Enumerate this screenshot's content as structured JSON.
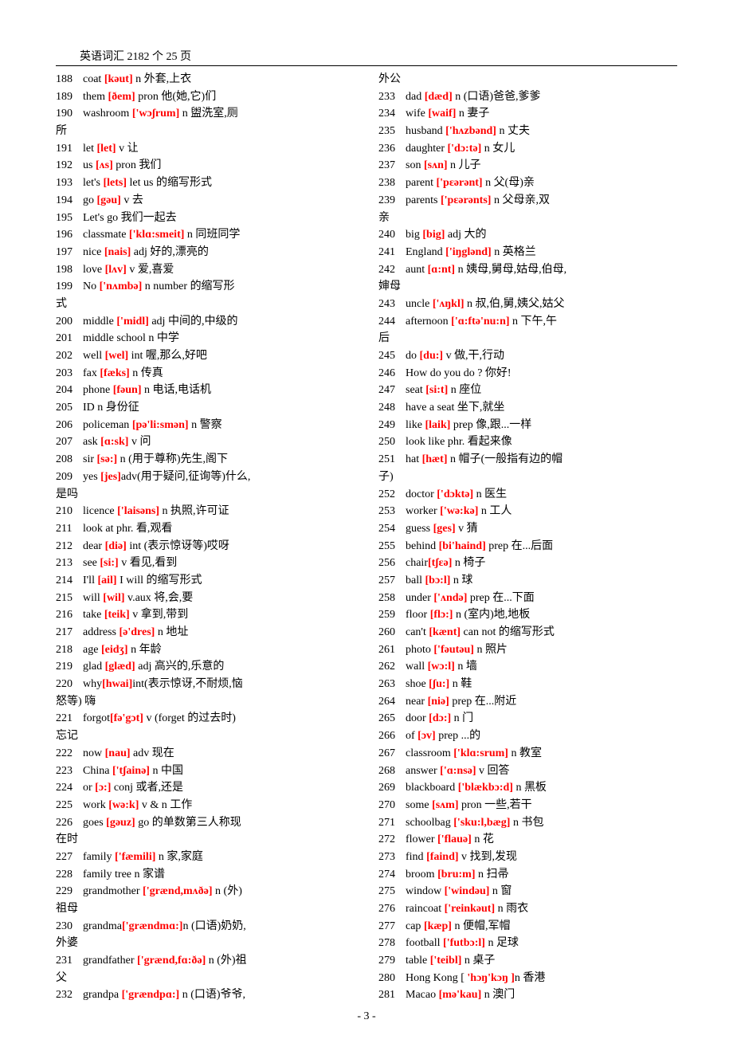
{
  "header": "英语词汇 2182 个 25 页",
  "page_num": "- 3 -",
  "style": {
    "pron_color": "#ff0000",
    "text_color": "#000000",
    "background": "#ffffff",
    "font_size": 14,
    "num_width": 34
  },
  "left": [
    {
      "n": "188",
      "w": "coat ",
      "p": "[kəut]",
      "d": " n 外套,上衣"
    },
    {
      "n": "189",
      "w": "them ",
      "p": "[ðem]",
      "d": " pron 他(她,它)们"
    },
    {
      "n": "190",
      "w": "washroom ",
      "p": "['wɔʃrum]",
      "d": " n 盥洗室,厕"
    },
    {
      "n": "",
      "w": "所",
      "p": "",
      "d": ""
    },
    {
      "n": "191",
      "w": "let ",
      "p": "[let]",
      "d": " v  让"
    },
    {
      "n": "192",
      "w": "us ",
      "p": "[ʌs]",
      "d": " pron 我们"
    },
    {
      "n": "193",
      "w": "let's ",
      "p": "[lets]",
      "d": " let us 的缩写形式"
    },
    {
      "n": "194",
      "w": "go ",
      "p": "[gəu]",
      "d": " v  去"
    },
    {
      "n": "195",
      "w": "Let's go     我们一起去",
      "p": "",
      "d": ""
    },
    {
      "n": "196",
      "w": "classmate ",
      "p": "['klɑ:smeit]",
      "d": " n 同班同学"
    },
    {
      "n": "197",
      "w": "nice ",
      "p": "[nais]",
      "d": " adj 好的,漂亮的"
    },
    {
      "n": "198",
      "w": "love ",
      "p": "[lʌv]",
      "d": " v  爱,喜爱"
    },
    {
      "n": "199",
      "w": "No ",
      "p": "['nʌmbə]",
      "d": " n number 的缩写形"
    },
    {
      "n": "",
      "w": "式",
      "p": "",
      "d": ""
    },
    {
      "n": "200",
      "w": "middle ",
      "p": "['midl]",
      "d": " adj 中间的,中级的"
    },
    {
      "n": "201",
      "w": "middle school    n 中学",
      "p": "",
      "d": ""
    },
    {
      "n": "202",
      "w": "well ",
      "p": "[wel]",
      "d": " int 喔,那么,好吧"
    },
    {
      "n": "203",
      "w": "fax ",
      "p": "[fæks]",
      "d": " n 传真"
    },
    {
      "n": "204",
      "w": "phone ",
      "p": "[fəun]",
      "d": " n 电话,电话机"
    },
    {
      "n": "205",
      "w": "ID   n 身份征",
      "p": "",
      "d": ""
    },
    {
      "n": "206",
      "w": "policeman ",
      "p": "[pə'li:smən]",
      "d": " n 警察"
    },
    {
      "n": "207",
      "w": "ask ",
      "p": "[ɑ:sk]",
      "d": " v  问"
    },
    {
      "n": "208",
      "w": "sir ",
      "p": "[sə:]",
      "d": " n (用于尊称)先生,阁下"
    },
    {
      "n": "209",
      "w": "yes ",
      "p": "[jes]",
      "d": "adv(用于疑问,征询等)什么,"
    },
    {
      "n": "",
      "w": "是吗",
      "p": "",
      "d": ""
    },
    {
      "n": "210",
      "w": "licence ",
      "p": "['laisəns]",
      "d": " n 执照,许可证"
    },
    {
      "n": "211",
      "w": "look at    phr. 看,观看",
      "p": "",
      "d": ""
    },
    {
      "n": "212",
      "w": "dear ",
      "p": "[diə]",
      "d": " int (表示惊讶等)哎呀"
    },
    {
      "n": "213",
      "w": "see ",
      "p": "[si:]",
      "d": " v  看见,看到"
    },
    {
      "n": "214",
      "w": "I'll ",
      "p": "[ail]",
      "d": " I will 的缩写形式"
    },
    {
      "n": "215",
      "w": "will ",
      "p": "[wil]",
      "d": " v.aux 将,会,要"
    },
    {
      "n": "216",
      "w": "take ",
      "p": "[teik]",
      "d": " v  拿到,带到"
    },
    {
      "n": "217",
      "w": "address ",
      "p": "[ə'dres]",
      "d": " n 地址"
    },
    {
      "n": "218",
      "w": "age ",
      "p": "[eidʒ]",
      "d": " n 年龄"
    },
    {
      "n": "219",
      "w": "glad ",
      "p": "[glæd]",
      "d": " adj 高兴的,乐意的"
    },
    {
      "n": "220",
      "w": "why",
      "p": "[hwai]",
      "d": "int(表示惊讶,不耐烦,恼"
    },
    {
      "n": "",
      "w": "怒等) 嗨",
      "p": "",
      "d": ""
    },
    {
      "n": "221",
      "w": "forgot",
      "p": "[fə'gɔt]",
      "d": " v  (forget 的过去时) "
    },
    {
      "n": "",
      "w": "忘记",
      "p": "",
      "d": ""
    },
    {
      "n": "222",
      "w": "now ",
      "p": "[nau]",
      "d": " adv 现在"
    },
    {
      "n": "223",
      "w": "China ",
      "p": "['tʃainə]",
      "d": " n 中国"
    },
    {
      "n": "224",
      "w": "or ",
      "p": "[ɔ:]",
      "d": " conj 或者,还是"
    },
    {
      "n": "225",
      "w": "work ",
      "p": "[wə:k]",
      "d": " v & n 工作"
    },
    {
      "n": "226",
      "w": "goes ",
      "p": "[gəuz]",
      "d": " go 的单数第三人称现"
    },
    {
      "n": "",
      "w": "在时",
      "p": "",
      "d": ""
    },
    {
      "n": "227",
      "w": "family ",
      "p": "['fæmili]",
      "d": " n 家,家庭"
    },
    {
      "n": "228",
      "w": "family tree    n 家谱",
      "p": "",
      "d": ""
    },
    {
      "n": "229",
      "w": "grandmother ",
      "p": "['grænd,mʌðə]",
      "d": " n (外)"
    },
    {
      "n": "",
      "w": "祖母",
      "p": "",
      "d": ""
    },
    {
      "n": "230",
      "w": "grandma",
      "p": "['grændmɑ:]",
      "d": "n (口语)奶奶,"
    },
    {
      "n": "",
      "w": "外婆",
      "p": "",
      "d": ""
    },
    {
      "n": "231",
      "w": "grandfather ",
      "p": "['grænd,fɑ:ðə]",
      "d": " n (外)祖"
    },
    {
      "n": "",
      "w": "父",
      "p": "",
      "d": ""
    },
    {
      "n": "232",
      "w": "grandpa ",
      "p": "['grændpɑ:]",
      "d": " n (口语)爷爷,"
    }
  ],
  "right": [
    {
      "n": "",
      "w": "外公",
      "p": "",
      "d": ""
    },
    {
      "n": "233",
      "w": "dad ",
      "p": "[dæd]",
      "d": " n (口语)爸爸,爹爹"
    },
    {
      "n": "234",
      "w": "wife ",
      "p": "[waif]",
      "d": " n 妻子"
    },
    {
      "n": "235",
      "w": "husband ",
      "p": "['hʌzbənd]",
      "d": " n 丈夫"
    },
    {
      "n": "236",
      "w": "daughter ",
      "p": "['dɔ:tə]",
      "d": " n 女儿"
    },
    {
      "n": "237",
      "w": "son ",
      "p": "[sʌn]",
      "d": " n 儿子"
    },
    {
      "n": "238",
      "w": "parent ",
      "p": "['pɛərənt]",
      "d": " n 父(母)亲"
    },
    {
      "n": "239",
      "w": "parents  ",
      "p": "['pɛərənts]",
      "d": "  n 父母亲,双"
    },
    {
      "n": "",
      "w": "亲",
      "p": "",
      "d": ""
    },
    {
      "n": "240",
      "w": "big ",
      "p": "[big]",
      "d": " adj 大的"
    },
    {
      "n": "241",
      "w": "England ",
      "p": "['iŋglənd]",
      "d": " n 英格兰"
    },
    {
      "n": "242",
      "w": "aunt ",
      "p": "[ɑ:nt]",
      "d": " n 姨母,舅母,姑母,伯母,"
    },
    {
      "n": "",
      "w": "婶母",
      "p": "",
      "d": ""
    },
    {
      "n": "243",
      "w": "uncle ",
      "p": "['ʌŋkl]",
      "d": " n 叔,伯,舅,姨父,姑父"
    },
    {
      "n": "244",
      "w": "afternoon ",
      "p": "['ɑ:ftə'nu:n]",
      "d": " n 下午,午"
    },
    {
      "n": "",
      "w": "后",
      "p": "",
      "d": ""
    },
    {
      "n": "245",
      "w": "do ",
      "p": "[du:]",
      "d": " v  做,干,行动"
    },
    {
      "n": "246",
      "w": "How do you do ?    你好!",
      "p": "",
      "d": ""
    },
    {
      "n": "247",
      "w": "seat ",
      "p": "[si:t]",
      "d": " n 座位"
    },
    {
      "n": "248",
      "w": "have a seat    坐下,就坐",
      "p": "",
      "d": ""
    },
    {
      "n": "249",
      "w": "like ",
      "p": "[laik]",
      "d": " prep  像,跟...一样"
    },
    {
      "n": "250",
      "w": "look like   phr. 看起来像",
      "p": "",
      "d": ""
    },
    {
      "n": "251",
      "w": "hat ",
      "p": "[hæt]",
      "d": " n 帽子(一般指有边的帽"
    },
    {
      "n": "",
      "w": "子)",
      "p": "",
      "d": ""
    },
    {
      "n": "252",
      "w": "doctor ",
      "p": "['dɔktə]",
      "d": " n 医生"
    },
    {
      "n": "253",
      "w": "worker ",
      "p": "['wə:kə]",
      "d": " n 工人"
    },
    {
      "n": "254",
      "w": "guess ",
      "p": "[ges]",
      "d": " v  猜"
    },
    {
      "n": "255",
      "w": "behind ",
      "p": "[bi'haind]",
      "d": " prep 在...后面"
    },
    {
      "n": "256",
      "w": "chair",
      "p": "[tʃɛə]",
      "d": " n  椅子"
    },
    {
      "n": "257",
      "w": "ball ",
      "p": "[bɔ:l]",
      "d": " n 球"
    },
    {
      "n": "258",
      "w": "under ",
      "p": "['ʌndə]",
      "d": " prep  在...下面"
    },
    {
      "n": "259",
      "w": "floor ",
      "p": "[flɔ:]",
      "d": " n (室内)地,地板"
    },
    {
      "n": "260",
      "w": "can't ",
      "p": "[kænt]",
      "d": " can not 的缩写形式"
    },
    {
      "n": "261",
      "w": "photo ",
      "p": "['fəutəu]",
      "d": " n 照片"
    },
    {
      "n": "262",
      "w": "wall ",
      "p": "[wɔ:l]",
      "d": " n 墙"
    },
    {
      "n": "263",
      "w": "shoe ",
      "p": "[ʃu:]",
      "d": " n 鞋"
    },
    {
      "n": "264",
      "w": "near ",
      "p": "[niə]",
      "d": " prep 在...附近"
    },
    {
      "n": "265",
      "w": "door ",
      "p": "[dɔ:]",
      "d": " n 门"
    },
    {
      "n": "266",
      "w": "of ",
      "p": "[ɔv]",
      "d": " prep  ...的"
    },
    {
      "n": "267",
      "w": "classroom ",
      "p": "['klɑ:srum]",
      "d": " n 教室"
    },
    {
      "n": "268",
      "w": "answer ",
      "p": "['ɑ:nsə]",
      "d": " v  回答"
    },
    {
      "n": "269",
      "w": "blackboard ",
      "p": "['blækbɔ:d]",
      "d": " n 黑板"
    },
    {
      "n": "270",
      "w": "some ",
      "p": "[sʌm]",
      "d": " pron 一些,若干"
    },
    {
      "n": "271",
      "w": "schoolbag ",
      "p": "['sku:l,bæg]",
      "d": " n 书包"
    },
    {
      "n": "272",
      "w": "flower ",
      "p": "['flauə]",
      "d": " n 花"
    },
    {
      "n": "273",
      "w": "find ",
      "p": "[faind]",
      "d": " v  找到,发现"
    },
    {
      "n": "274",
      "w": "broom ",
      "p": "[bru:m]",
      "d": " n 扫帚"
    },
    {
      "n": "275",
      "w": "window ",
      "p": "['windəu]",
      "d": " n 窗"
    },
    {
      "n": "276",
      "w": "raincoat ",
      "p": "['reinkəut]",
      "d": " n 雨衣"
    },
    {
      "n": "277",
      "w": "cap ",
      "p": "[kæp]",
      "d": " n 便帽,军帽"
    },
    {
      "n": "278",
      "w": "football ",
      "p": "['futbɔ:l]",
      "d": " n 足球"
    },
    {
      "n": "279",
      "w": "table ",
      "p": "['teibl]",
      "d": " n 桌子"
    },
    {
      "n": "280",
      "w": "Hong Kong [ ",
      "p": "'hɔŋ'kɔŋ ]",
      "d": "n 香港"
    },
    {
      "n": "281",
      "w": "Macao ",
      "p": "[mə'kau]",
      "d": " n 澳门"
    }
  ]
}
